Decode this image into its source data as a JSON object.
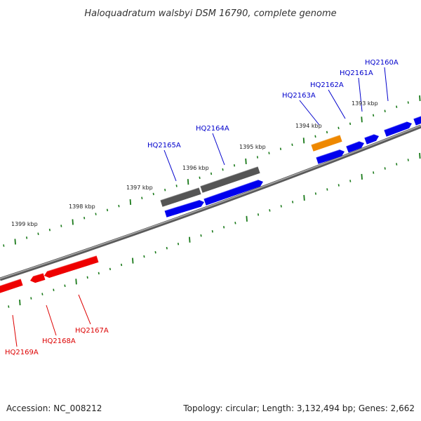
{
  "title": "Haloquadratum walsbyi DSM 16790, complete genome",
  "footer": {
    "accession": "Accession: NC_008212",
    "summary": "Topology: circular; Length: 3,132,494 bp; Genes: 2,662"
  },
  "colors": {
    "forward_gene": "#0000ee",
    "reverse_gene": "#ee0000",
    "gray_feature": "#555555",
    "orange_feature": "#ee8800",
    "tick": "#1a7a1a",
    "backbone": "#888888",
    "forward_label": "#0000cc",
    "reverse_label": "#dd0000"
  },
  "kbp_markers": [
    {
      "label": "1393 kbp"
    },
    {
      "label": "1394 kbp"
    },
    {
      "label": "1395 kbp"
    },
    {
      "label": "1396 kbp"
    },
    {
      "label": "1397 kbp"
    },
    {
      "label": "1398 kbp"
    },
    {
      "label": "1399 kbp"
    }
  ],
  "forward_genes": [
    {
      "label": "HQ2160A"
    },
    {
      "label": "HQ2161A"
    },
    {
      "label": "HQ2162A"
    },
    {
      "label": "HQ2163A"
    },
    {
      "label": "HQ2164A"
    },
    {
      "label": "HQ2165A"
    }
  ],
  "reverse_genes": [
    {
      "label": "HQ2167A"
    },
    {
      "label": "HQ2168A"
    },
    {
      "label": "HQ2169A"
    }
  ]
}
